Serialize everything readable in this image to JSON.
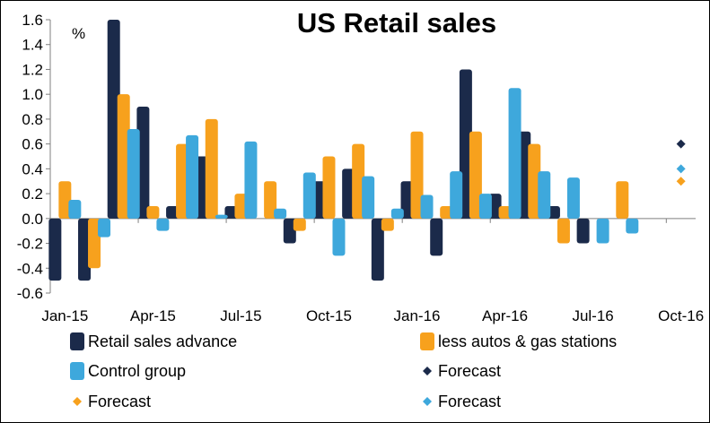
{
  "chart_data": {
    "type": "bar",
    "title": "US Retail sales",
    "unit_label": "%",
    "xlabel": "",
    "ylabel": "",
    "ylim": [
      -0.6,
      1.6
    ],
    "yticks": [
      "1.6",
      "1.4",
      "1.2",
      "1.0",
      "0.8",
      "0.6",
      "0.4",
      "0.2",
      "0.0",
      "-0.2",
      "-0.4",
      "-0.6"
    ],
    "x_tick_labels": [
      "Jan-15",
      "Apr-15",
      "Jul-15",
      "Oct-15",
      "Jan-16",
      "Apr-16",
      "Jul-16",
      "Oct-16"
    ],
    "categories": [
      "Jan-15",
      "Feb-15",
      "Mar-15",
      "Apr-15",
      "May-15",
      "Jun-15",
      "Jul-15",
      "Aug-15",
      "Sep-15",
      "Oct-15",
      "Nov-15",
      "Dec-15",
      "Jan-16",
      "Feb-16",
      "Mar-16",
      "Apr-16",
      "May-16",
      "Jun-16",
      "Jul-16",
      "Aug-16",
      "Sep-16"
    ],
    "series": [
      {
        "name": "Retail sales advance",
        "color": "#1b2a4a",
        "values": [
          -0.5,
          -0.5,
          1.6,
          0.9,
          0.1,
          0.5,
          0.1,
          0.0,
          -0.2,
          0.3,
          0.4,
          -0.5,
          0.3,
          -0.3,
          1.2,
          0.2,
          0.7,
          0.1,
          -0.2,
          null,
          null
        ]
      },
      {
        "name": "less autos & gas stations",
        "color": "#f7a11d",
        "values": [
          0.3,
          -0.4,
          1.0,
          0.1,
          0.6,
          0.8,
          0.2,
          0.3,
          -0.1,
          0.5,
          0.6,
          -0.1,
          0.7,
          0.1,
          0.7,
          0.1,
          0.6,
          -0.2,
          null,
          0.3,
          null
        ]
      },
      {
        "name": "Control group",
        "color": "#3ea8dc",
        "values": [
          0.15,
          -0.15,
          0.72,
          -0.1,
          0.67,
          0.03,
          0.62,
          0.08,
          0.37,
          -0.3,
          0.34,
          0.08,
          0.19,
          0.38,
          0.2,
          1.05,
          0.38,
          0.33,
          -0.2,
          -0.12,
          null
        ]
      }
    ],
    "forecast_category": "Oct-16",
    "forecasts": [
      {
        "name": "Forecast",
        "color": "#1b2a4a",
        "value": 0.6
      },
      {
        "name": "Forecast",
        "color": "#f7a11d",
        "value": 0.3
      },
      {
        "name": "Forecast",
        "color": "#3ea8dc",
        "value": 0.4
      }
    ],
    "legend": [
      {
        "label": "Retail sales advance",
        "color": "#1b2a4a",
        "marker": "bar"
      },
      {
        "label": "less autos & gas stations",
        "color": "#f7a11d",
        "marker": "bar"
      },
      {
        "label": "Control group",
        "color": "#3ea8dc",
        "marker": "bar"
      },
      {
        "label": "Forecast",
        "color": "#1b2a4a",
        "marker": "diamond"
      },
      {
        "label": "Forecast",
        "color": "#f7a11d",
        "marker": "diamond"
      },
      {
        "label": "Forecast",
        "color": "#3ea8dc",
        "marker": "diamond"
      }
    ],
    "legend_position": "bottom",
    "grid": false
  }
}
